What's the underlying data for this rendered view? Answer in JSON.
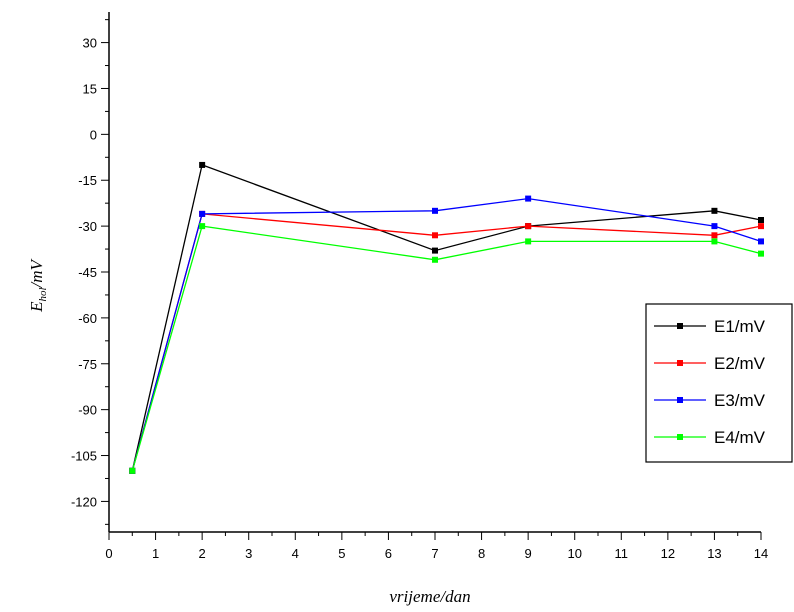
{
  "chart_data": {
    "type": "line",
    "title": "",
    "xlabel": "vrijeme/dan",
    "ylabel_main": "E",
    "ylabel_sub": "hol",
    "ylabel_unit": "/mV",
    "xlim": [
      0,
      14
    ],
    "ylim": [
      -130,
      40
    ],
    "xticks": [
      0,
      1,
      2,
      3,
      4,
      5,
      6,
      7,
      8,
      9,
      10,
      11,
      12,
      13,
      14
    ],
    "yticks": [
      30,
      15,
      0,
      -15,
      -30,
      -45,
      -60,
      -75,
      -90,
      -105,
      -120
    ],
    "grid": false,
    "legend_position": "right",
    "series": [
      {
        "name": "E1/mV",
        "color": "#000000",
        "x": [
          0.5,
          2,
          7,
          9,
          13,
          14
        ],
        "y": [
          -110,
          -10,
          -38,
          -30,
          -25,
          -28
        ]
      },
      {
        "name": "E2/mV",
        "color": "#ff0000",
        "x": [
          0.5,
          2,
          7,
          9,
          13,
          14
        ],
        "y": [
          -110,
          -26,
          -33,
          -30,
          -33,
          -30
        ]
      },
      {
        "name": "E3/mV",
        "color": "#0000ff",
        "x": [
          0.5,
          2,
          7,
          9,
          13,
          14
        ],
        "y": [
          -110,
          -26,
          -25,
          -21,
          -30,
          -35
        ]
      },
      {
        "name": "E4/mV",
        "color": "#00ff00",
        "x": [
          0.5,
          2,
          7,
          9,
          13,
          14
        ],
        "y": [
          -110,
          -30,
          -41,
          -35,
          -35,
          -39
        ]
      }
    ]
  }
}
